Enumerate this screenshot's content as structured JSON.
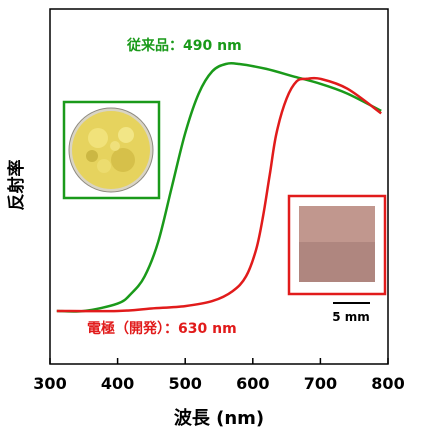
{
  "chart_data": {
    "type": "line",
    "xlabel": "波長 (nm)",
    "ylabel": "反射率",
    "xlim": [
      300,
      800
    ],
    "xticks": [
      300,
      400,
      500,
      600,
      700,
      800
    ],
    "grid": false,
    "y_tick_labels_shown": false,
    "series": [
      {
        "name": "従来品：490 nm",
        "color": "#1a9a1a",
        "x": [
          310,
          350,
          400,
          420,
          440,
          460,
          480,
          500,
          520,
          540,
          560,
          580,
          620,
          660,
          700,
          740,
          790
        ],
        "y": [
          0.0,
          0.0,
          0.03,
          0.07,
          0.14,
          0.28,
          0.5,
          0.72,
          0.88,
          0.97,
          1.0,
          1.0,
          0.98,
          0.95,
          0.92,
          0.88,
          0.81
        ]
      },
      {
        "name": "電極（開発）：630 nm",
        "color": "#e11b1b",
        "x": [
          310,
          400,
          450,
          500,
          540,
          570,
          590,
          605,
          615,
          625,
          635,
          650,
          665,
          680,
          700,
          740,
          790
        ],
        "y": [
          0.0,
          0.0,
          0.01,
          0.02,
          0.04,
          0.08,
          0.14,
          0.25,
          0.38,
          0.55,
          0.72,
          0.86,
          0.93,
          0.94,
          0.94,
          0.9,
          0.8
        ]
      }
    ],
    "annotations": {
      "scale_bar_label": "5 mm"
    }
  },
  "colors": {
    "green": "#1a9a1a",
    "red": "#e11b1b",
    "axis": "#000000"
  }
}
